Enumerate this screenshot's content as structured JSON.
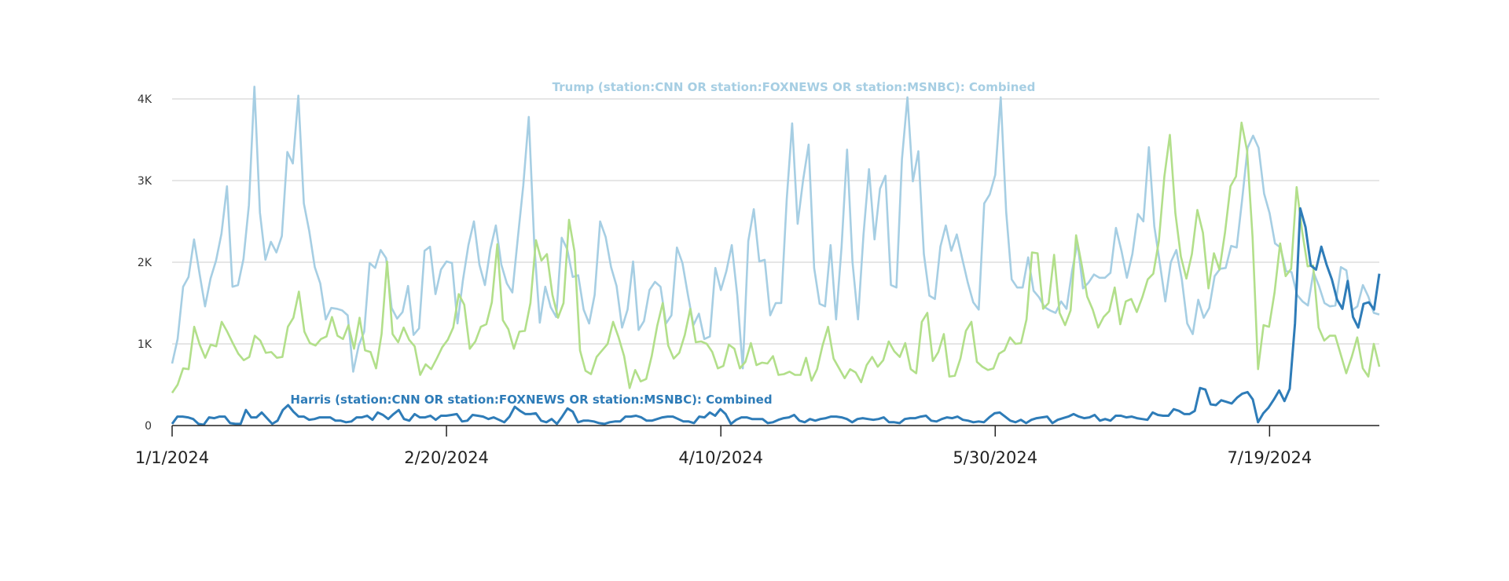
{
  "chart_data": {
    "type": "line",
    "x_start": "1/1/2024",
    "x_end": "8/8/2024",
    "x_tick_labels": [
      "1/1/2024",
      "2/20/2024",
      "4/10/2024",
      "5/30/2024",
      "7/19/2024"
    ],
    "y_tick_labels": [
      "0",
      "1K",
      "2K",
      "3K",
      "4K"
    ],
    "ylim": [
      0,
      4000
    ],
    "grid": true,
    "series": [
      {
        "name": "Trump (station:CNN OR station:FOXNEWS OR station:MSNBC): Combined",
        "color": "#a6cee3",
        "values": [
          760,
          1060,
          1700,
          1820,
          2280,
          1860,
          1460,
          1800,
          2020,
          2350,
          2930,
          1700,
          1720,
          2040,
          2700,
          4150,
          2610,
          2030,
          2250,
          2120,
          2320,
          3350,
          3210,
          4040,
          2720,
          2380,
          1940,
          1740,
          1300,
          1440,
          1430,
          1410,
          1350,
          660,
          980,
          1150,
          1990,
          1930,
          2150,
          2050,
          1440,
          1310,
          1390,
          1710,
          1110,
          1190,
          2140,
          2190,
          1610,
          1910,
          2010,
          1990,
          1250,
          1780,
          2210,
          2500,
          1970,
          1720,
          2160,
          2450,
          1970,
          1740,
          1630,
          2300,
          2940,
          3780,
          2220,
          1260,
          1700,
          1450,
          1330,
          2300,
          2160,
          1820,
          1840,
          1420,
          1250,
          1600,
          2500,
          2310,
          1940,
          1710,
          1200,
          1420,
          2010,
          1170,
          1280,
          1660,
          1760,
          1700,
          1250,
          1350,
          2180,
          1990,
          1600,
          1230,
          1370,
          1060,
          1090,
          1930,
          1660,
          1890,
          2210,
          1590,
          700,
          2260,
          2650,
          2010,
          2030,
          1350,
          1500,
          1500,
          2770,
          3700,
          2470,
          3010,
          3440,
          1930,
          1490,
          1460,
          2210,
          1300,
          2190,
          3380,
          2000,
          1300,
          2340,
          3140,
          2280,
          2900,
          3060,
          1720,
          1690,
          3260,
          4020,
          2990,
          3360,
          2100,
          1590,
          1550,
          2190,
          2450,
          2140,
          2340,
          2040,
          1750,
          1510,
          1420,
          2720,
          2830,
          3070,
          4020,
          2620,
          1790,
          1690,
          1690,
          2060,
          1650,
          1570,
          1450,
          1410,
          1380,
          1520,
          1430,
          1890,
          2240,
          1680,
          1750,
          1850,
          1810,
          1810,
          1870,
          2420,
          2140,
          1810,
          2100,
          2590,
          2500,
          3410,
          2440,
          1990,
          1520,
          2000,
          2150,
          1790,
          1250,
          1120,
          1540,
          1320,
          1440,
          1830,
          1920,
          1930,
          2200,
          2180,
          2770,
          3400,
          3550,
          3400,
          2840,
          2600,
          2230,
          2180,
          1890,
          1880,
          1600,
          1520,
          1470,
          1880,
          1710,
          1500,
          1460,
          1470,
          1940,
          1900,
          1410,
          1460,
          1720,
          1580,
          1380,
          1360
        ]
      },
      {
        "name": "",
        "color": "#b2df8a",
        "values": [
          400,
          500,
          700,
          690,
          1210,
          990,
          830,
          990,
          970,
          1270,
          1150,
          1010,
          880,
          800,
          840,
          1100,
          1040,
          890,
          900,
          830,
          840,
          1210,
          1320,
          1640,
          1150,
          1010,
          980,
          1060,
          1090,
          1330,
          1100,
          1060,
          1230,
          940,
          1320,
          920,
          900,
          700,
          1120,
          2010,
          1120,
          1020,
          1200,
          1050,
          970,
          620,
          750,
          690,
          820,
          960,
          1050,
          1200,
          1610,
          1480,
          940,
          1030,
          1210,
          1240,
          1510,
          2220,
          1290,
          1180,
          940,
          1150,
          1160,
          1500,
          2270,
          2020,
          2100,
          1600,
          1320,
          1500,
          2520,
          2130,
          920,
          670,
          630,
          840,
          920,
          1000,
          1270,
          1080,
          850,
          460,
          680,
          540,
          570,
          850,
          1220,
          1500,
          980,
          820,
          890,
          1110,
          1430,
          1020,
          1030,
          1000,
          900,
          700,
          730,
          990,
          940,
          700,
          780,
          1010,
          740,
          770,
          760,
          850,
          620,
          630,
          660,
          620,
          620,
          830,
          550,
          690,
          980,
          1210,
          820,
          700,
          580,
          690,
          650,
          530,
          740,
          840,
          720,
          800,
          1030,
          910,
          840,
          1010,
          690,
          640,
          1270,
          1380,
          790,
          900,
          1120,
          600,
          610,
          820,
          1160,
          1270,
          780,
          720,
          680,
          700,
          880,
          920,
          1080,
          1000,
          1010,
          1300,
          2120,
          2110,
          1430,
          1500,
          2090,
          1380,
          1230,
          1410,
          2330,
          1970,
          1580,
          1420,
          1200,
          1330,
          1400,
          1690,
          1240,
          1520,
          1550,
          1390,
          1570,
          1790,
          1860,
          2260,
          3050,
          3560,
          2600,
          2070,
          1800,
          2100,
          2640,
          2360,
          1680,
          2110,
          1910,
          2360,
          2930,
          3050,
          3710,
          3370,
          2310,
          690,
          1230,
          1210,
          1630,
          2230,
          1830,
          1920,
          2920,
          2380,
          1950,
          1960,
          1200,
          1040,
          1100,
          1100,
          870,
          640,
          840,
          1080,
          700,
          600,
          1000,
          720
        ]
      },
      {
        "name": "Harris (station:CNN OR station:FOXNEWS OR station:MSNBC): Combined",
        "color": "#2e7cb8",
        "values": [
          20,
          110,
          110,
          100,
          80,
          20,
          10,
          100,
          90,
          110,
          110,
          30,
          20,
          20,
          190,
          100,
          100,
          160,
          90,
          20,
          60,
          190,
          250,
          170,
          110,
          110,
          70,
          80,
          100,
          100,
          100,
          60,
          60,
          40,
          50,
          100,
          100,
          120,
          70,
          160,
          130,
          80,
          140,
          190,
          80,
          60,
          140,
          100,
          100,
          120,
          70,
          120,
          120,
          130,
          140,
          50,
          60,
          130,
          120,
          110,
          80,
          100,
          70,
          40,
          110,
          230,
          180,
          140,
          140,
          150,
          60,
          40,
          80,
          20,
          110,
          210,
          170,
          40,
          60,
          60,
          50,
          30,
          20,
          40,
          50,
          50,
          110,
          110,
          120,
          100,
          60,
          60,
          80,
          100,
          110,
          110,
          80,
          50,
          50,
          30,
          110,
          100,
          160,
          120,
          200,
          140,
          20,
          70,
          100,
          100,
          80,
          80,
          80,
          30,
          40,
          70,
          90,
          100,
          130,
          60,
          40,
          80,
          60,
          80,
          90,
          110,
          110,
          100,
          80,
          40,
          80,
          90,
          80,
          70,
          80,
          100,
          40,
          40,
          30,
          80,
          90,
          90,
          110,
          120,
          60,
          50,
          80,
          100,
          90,
          110,
          70,
          60,
          40,
          50,
          40,
          100,
          150,
          160,
          110,
          60,
          40,
          70,
          30,
          70,
          90,
          100,
          110,
          30,
          70,
          90,
          110,
          140,
          110,
          90,
          100,
          130,
          60,
          80,
          60,
          120,
          120,
          100,
          110,
          90,
          80,
          70,
          160,
          130,
          120,
          120,
          200,
          180,
          140,
          140,
          180,
          460,
          440,
          260,
          250,
          310,
          290,
          270,
          340,
          390,
          410,
          320,
          40,
          150,
          220,
          320,
          430,
          300,
          450,
          1250,
          2660,
          2430,
          1960,
          1910,
          2190,
          1970,
          1790,
          1540,
          1430,
          1770,
          1330,
          1200,
          1490,
          1510,
          1420,
          1860
        ]
      }
    ]
  }
}
